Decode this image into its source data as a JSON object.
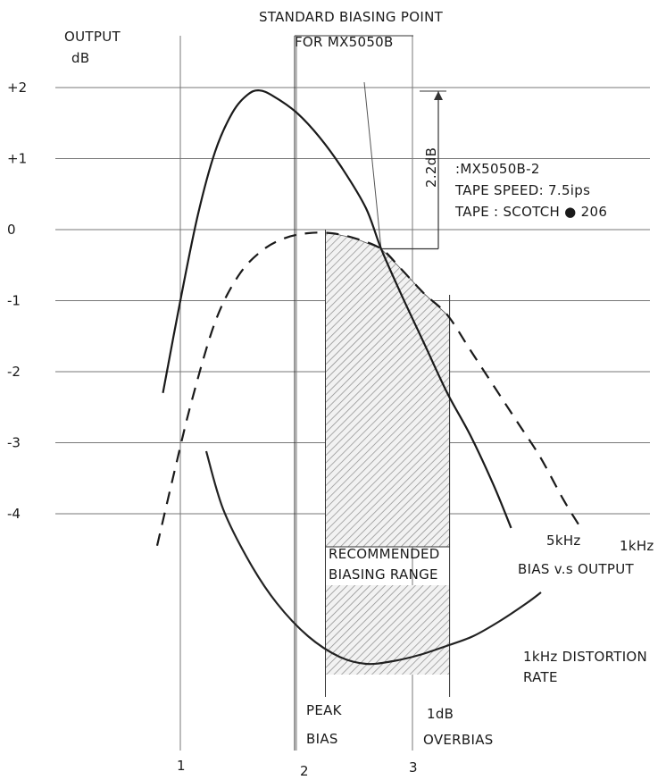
{
  "chart_data": {
    "type": "line",
    "title_lines": [
      "STANDARD BIASING POINT",
      "FOR MX5050B"
    ],
    "ylabel_lines": [
      "OUTPUT",
      "dB"
    ],
    "y_ticks": [
      {
        "value": 2,
        "label": "+2"
      },
      {
        "value": 1,
        "label": "+1"
      },
      {
        "value": 0,
        "label": "0"
      },
      {
        "value": -1,
        "label": "-1"
      },
      {
        "value": -2,
        "label": "-2"
      },
      {
        "value": -3,
        "label": "-3"
      },
      {
        "value": -4,
        "label": "-4"
      }
    ],
    "x_ticks": [
      {
        "value": 1,
        "label": "1"
      },
      {
        "value": 2,
        "label": "2"
      },
      {
        "value": 3,
        "label": "3"
      }
    ],
    "xlim": [
      0.2,
      5.4
    ],
    "ylim": [
      -4.5,
      2.5
    ],
    "grid": true,
    "info_lines": [
      ":MX5050B-2",
      "TAPE SPEED: 7.5ips",
      "TAPE : SCOTCH ● 206"
    ],
    "dim_label": "2.2dB",
    "range_label_lines": [
      "RECOMMENDED",
      "BIASING RANGE"
    ],
    "peak_label_lines": [
      "PEAK",
      "BIAS"
    ],
    "overbias_label_lines": [
      "1dB",
      "OVERBIAS"
    ],
    "standard_bias_x": 2.73,
    "peak_bias_x": 2.25,
    "overbias_x": 3.32,
    "series": [
      {
        "name": "5kHz",
        "style": "solid",
        "points": [
          [
            0.85,
            -2.3
          ],
          [
            1.0,
            -1.0
          ],
          [
            1.15,
            0.2
          ],
          [
            1.3,
            1.1
          ],
          [
            1.45,
            1.65
          ],
          [
            1.58,
            1.9
          ],
          [
            1.68,
            1.96
          ],
          [
            1.8,
            1.88
          ],
          [
            2.0,
            1.65
          ],
          [
            2.2,
            1.3
          ],
          [
            2.4,
            0.85
          ],
          [
            2.6,
            0.3
          ],
          [
            2.73,
            -0.27
          ],
          [
            2.9,
            -0.9
          ],
          [
            3.1,
            -1.6
          ],
          [
            3.3,
            -2.3
          ],
          [
            3.5,
            -2.9
          ],
          [
            3.7,
            -3.6
          ],
          [
            3.85,
            -4.2
          ]
        ]
      },
      {
        "name": "1kHz",
        "style": "dashed",
        "points": [
          [
            0.8,
            -4.45
          ],
          [
            0.95,
            -3.4
          ],
          [
            1.1,
            -2.4
          ],
          [
            1.3,
            -1.3
          ],
          [
            1.5,
            -0.65
          ],
          [
            1.7,
            -0.3
          ],
          [
            1.9,
            -0.12
          ],
          [
            2.1,
            -0.05
          ],
          [
            2.3,
            -0.05
          ],
          [
            2.5,
            -0.12
          ],
          [
            2.73,
            -0.27
          ],
          [
            2.9,
            -0.55
          ],
          [
            3.1,
            -0.9
          ],
          [
            3.3,
            -1.2
          ],
          [
            3.5,
            -1.7
          ],
          [
            3.7,
            -2.2
          ],
          [
            3.9,
            -2.7
          ],
          [
            4.1,
            -3.2
          ],
          [
            4.3,
            -3.8
          ],
          [
            4.45,
            -4.2
          ]
        ]
      }
    ],
    "curve_labels": {
      "s5k": "5kHz",
      "s1k": "1kHz",
      "bvo": "BIAS v.s OUTPUT",
      "dist": [
        "1kHz DISTORTION",
        "RATE"
      ]
    }
  }
}
